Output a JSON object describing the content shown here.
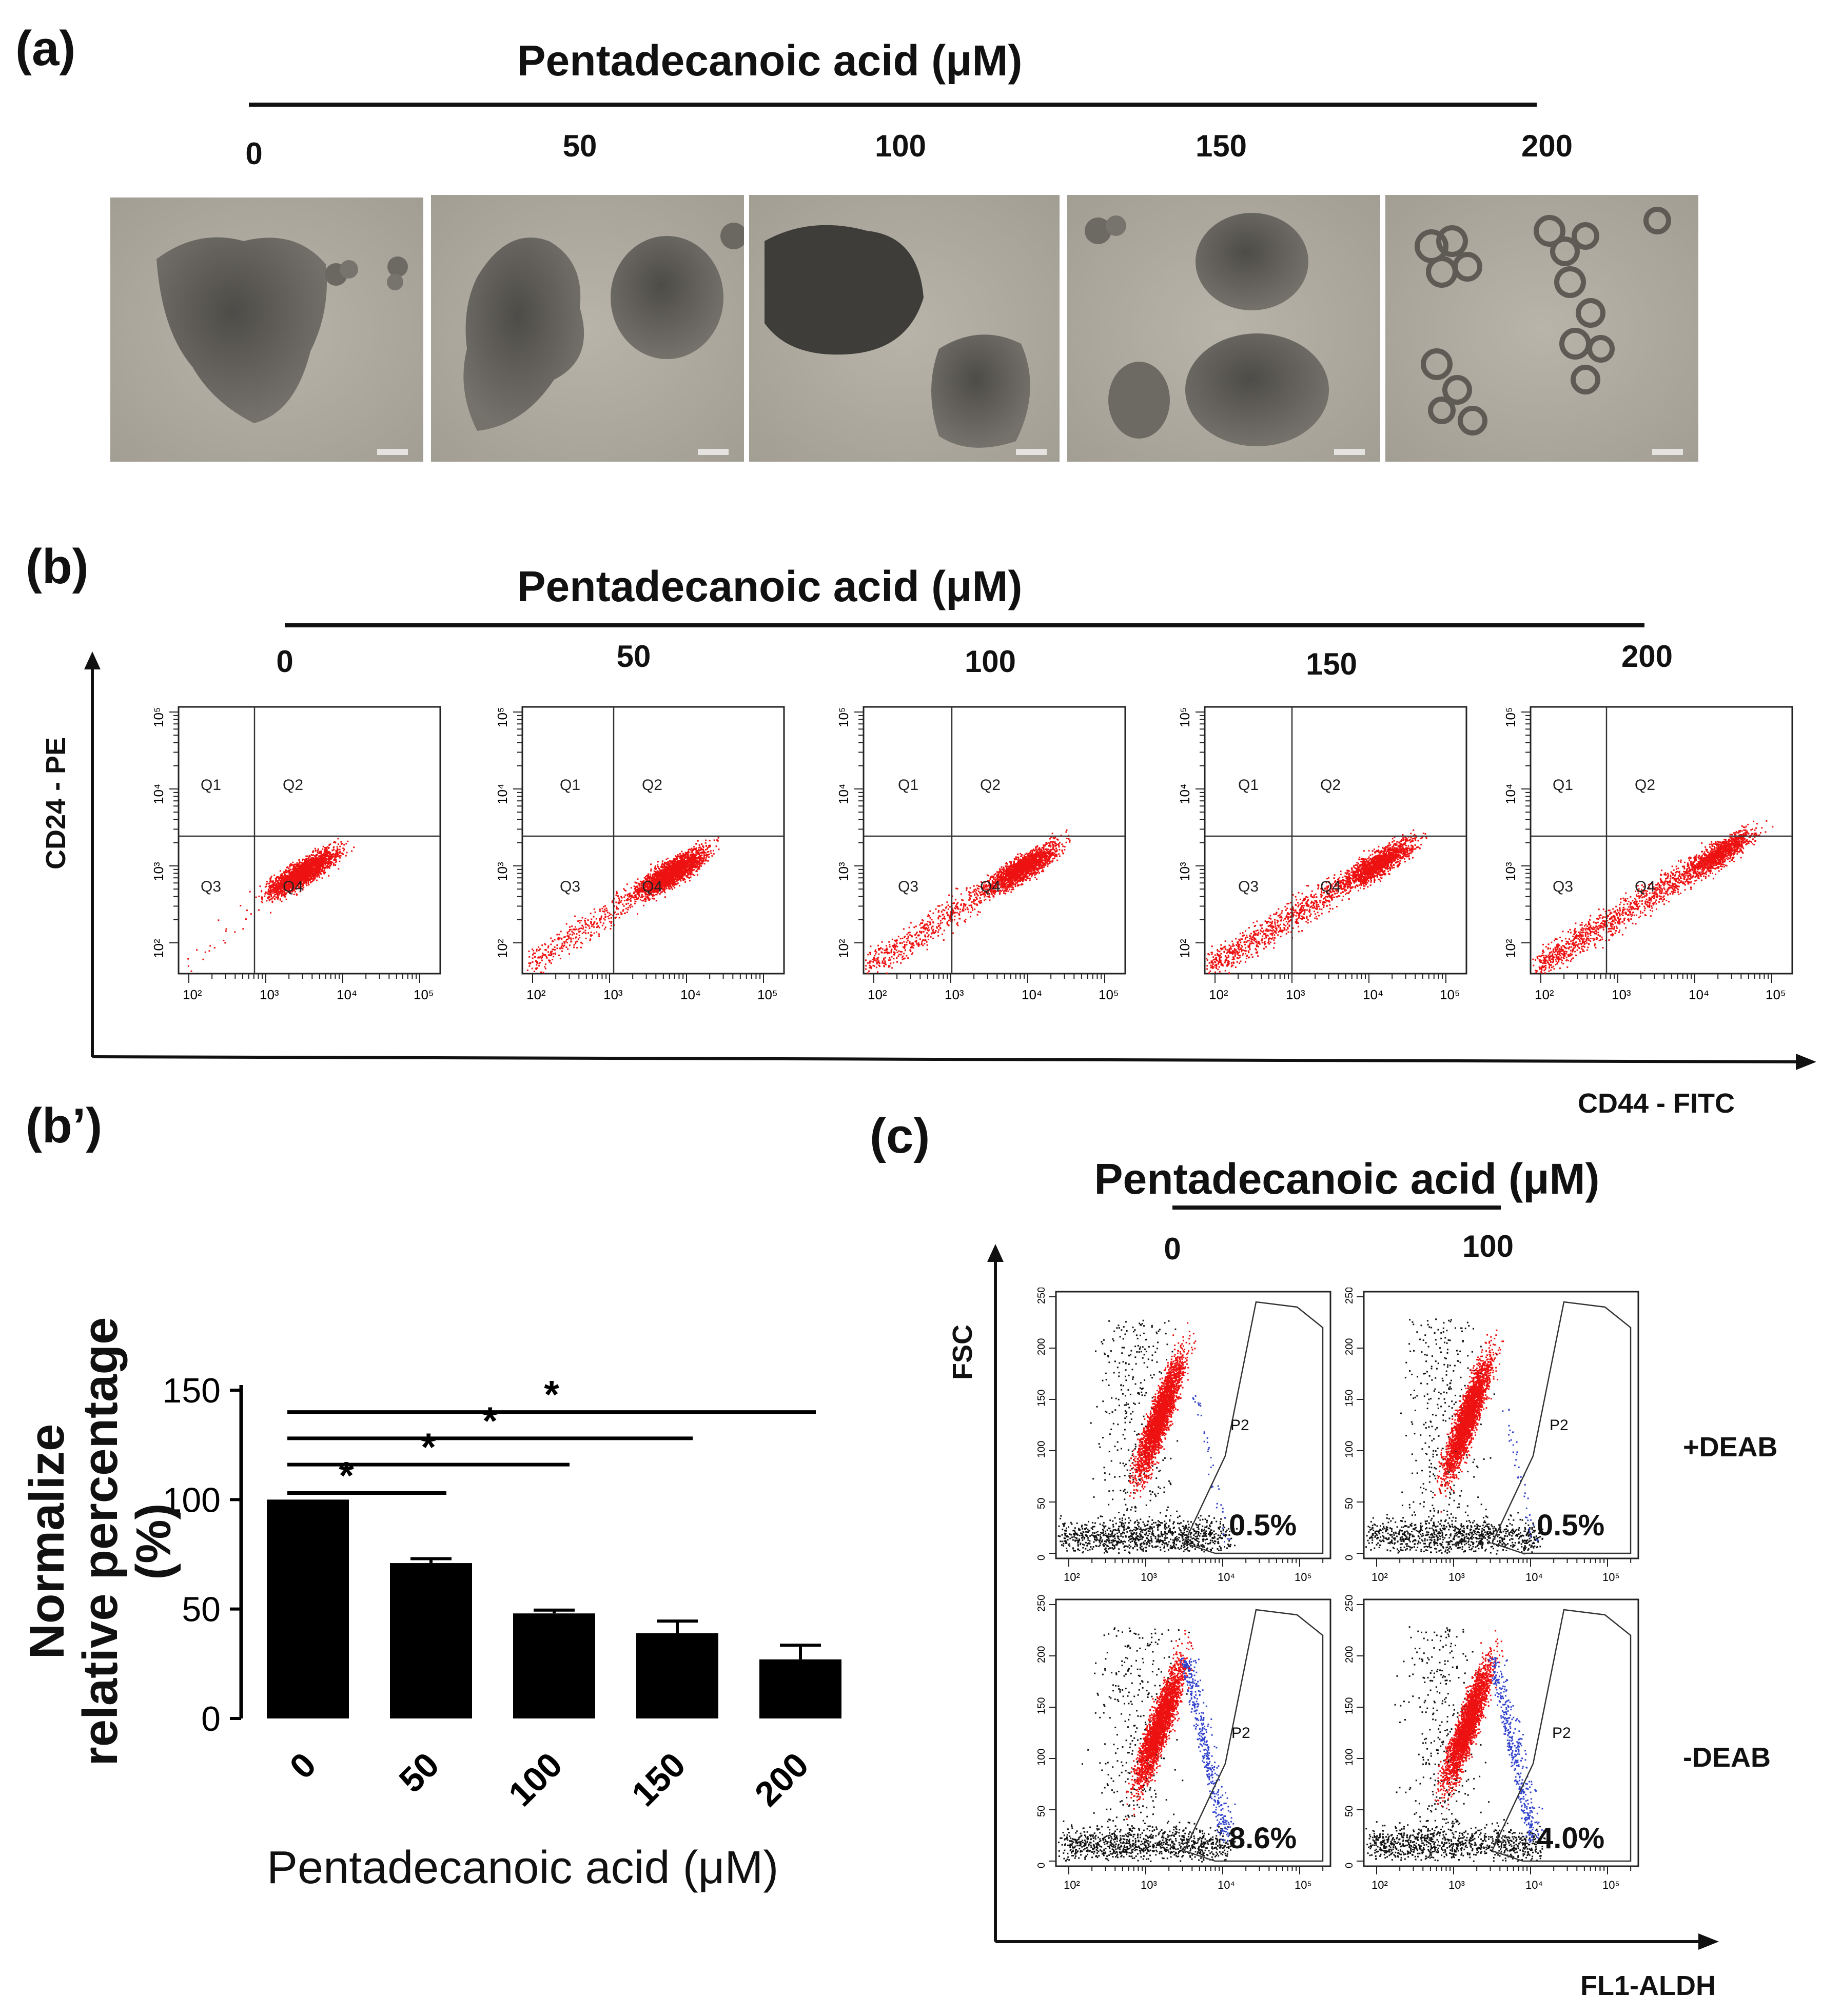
{
  "panel_a": {
    "label": "(a)",
    "title": "Pentadecanoic acid  (μM)",
    "concentrations": [
      "0",
      "50",
      "100",
      "150",
      "200"
    ]
  },
  "panel_b": {
    "label": "(b)",
    "title": "Pentadecanoic acid  (μM)",
    "concentrations": [
      "0",
      "50",
      "100",
      "150",
      "200"
    ],
    "y_axis": "CD24 - PE",
    "x_axis": "CD44 - FITC",
    "quadrants": [
      "Q1",
      "Q2",
      "Q3",
      "Q4"
    ],
    "tick_labels_y": [
      "10²",
      "10³",
      "10⁴",
      "10⁵"
    ],
    "tick_labels_x": [
      "10²",
      "10³",
      "10⁴",
      "10⁵"
    ]
  },
  "panel_b_prime": {
    "label": "(b’)"
  },
  "panel_c": {
    "label": "(c)",
    "title": "Pentadecanoic acid (μM)",
    "concentrations": [
      "0",
      "100"
    ],
    "y_axis": "FSC",
    "x_axis": "FL1-ALDH",
    "rows": [
      "+DEAB",
      "-DEAB"
    ],
    "gate": "P2",
    "percentages": [
      [
        "0.5%",
        "0.5%"
      ],
      [
        "8.6%",
        "4.0%"
      ]
    ]
  },
  "chart_data": {
    "type": "bar",
    "title": "",
    "xlabel": "Pentadecanoic acid (μM)",
    "ylabel_line1": "Normalize",
    "ylabel_line2": "relative percentage (%)",
    "categories": [
      "0",
      "50",
      "100",
      "150",
      "200"
    ],
    "values": [
      100,
      71,
      48,
      39,
      27
    ],
    "errors": [
      0,
      2,
      1.5,
      5.5,
      6.5
    ],
    "ylim": [
      0,
      150
    ],
    "yticks": [
      "0",
      "50",
      "100",
      "150"
    ],
    "significance": [
      {
        "from": "0",
        "to": "50",
        "mark": "*"
      },
      {
        "from": "0",
        "to": "100",
        "mark": "*"
      },
      {
        "from": "0",
        "to": "150",
        "mark": "*"
      },
      {
        "from": "0",
        "to": "200",
        "mark": "*"
      }
    ],
    "bar_color": "#000000"
  },
  "colors": {
    "dots_main": "#ee1111",
    "dots_blue": "#3344cc",
    "dots_black": "#111111"
  }
}
